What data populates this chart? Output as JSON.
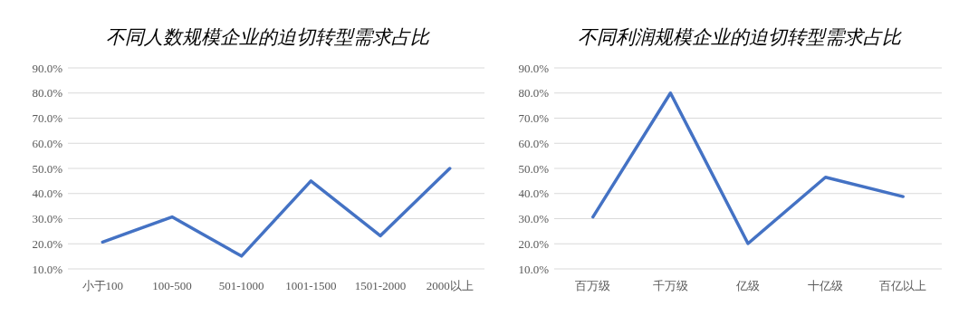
{
  "chart_data": [
    {
      "type": "line",
      "title": "不同人数规模企业的迫切转型需求占比",
      "categories": [
        "小于100",
        "100-500",
        "501-1000",
        "1001-1500",
        "1501-2000",
        "2000以上"
      ],
      "series": [
        {
          "color": "#4472c4",
          "values": [
            20.7,
            30.7,
            15.1,
            45.0,
            23.2,
            50.0
          ]
        }
      ],
      "ylim": [
        10,
        90
      ],
      "yticks": [
        {
          "value": 10,
          "label": "10.0%"
        },
        {
          "value": 20,
          "label": "20.0%"
        },
        {
          "value": 30,
          "label": "30.0%"
        },
        {
          "value": 40,
          "label": "40.0%"
        },
        {
          "value": 50,
          "label": "50.0%"
        },
        {
          "value": 60,
          "label": "60.0%"
        },
        {
          "value": 70,
          "label": "70.0%"
        },
        {
          "value": 80,
          "label": "80.0%"
        },
        {
          "value": 90,
          "label": "90.0%"
        }
      ],
      "grid": "y",
      "marker": "none",
      "line_style": "solid"
    },
    {
      "type": "line",
      "title": "不同利润规模企业的迫切转型需求占比",
      "categories": [
        "百万级",
        "千万级",
        "亿级",
        "十亿级",
        "百亿以上"
      ],
      "series": [
        {
          "color": "#4472c4",
          "values": [
            30.7,
            80.0,
            20.1,
            46.5,
            38.8
          ]
        }
      ],
      "ylim": [
        10,
        90
      ],
      "yticks": [
        {
          "value": 10,
          "label": "10.0%"
        },
        {
          "value": 20,
          "label": "20.0%"
        },
        {
          "value": 30,
          "label": "30.0%"
        },
        {
          "value": 40,
          "label": "40.0%"
        },
        {
          "value": 50,
          "label": "50.0%"
        },
        {
          "value": 60,
          "label": "60.0%"
        },
        {
          "value": 70,
          "label": "70.0%"
        },
        {
          "value": 80,
          "label": "80.0%"
        },
        {
          "value": 90,
          "label": "90.0%"
        }
      ],
      "grid": "y",
      "marker": "none",
      "line_style": "solid"
    }
  ]
}
